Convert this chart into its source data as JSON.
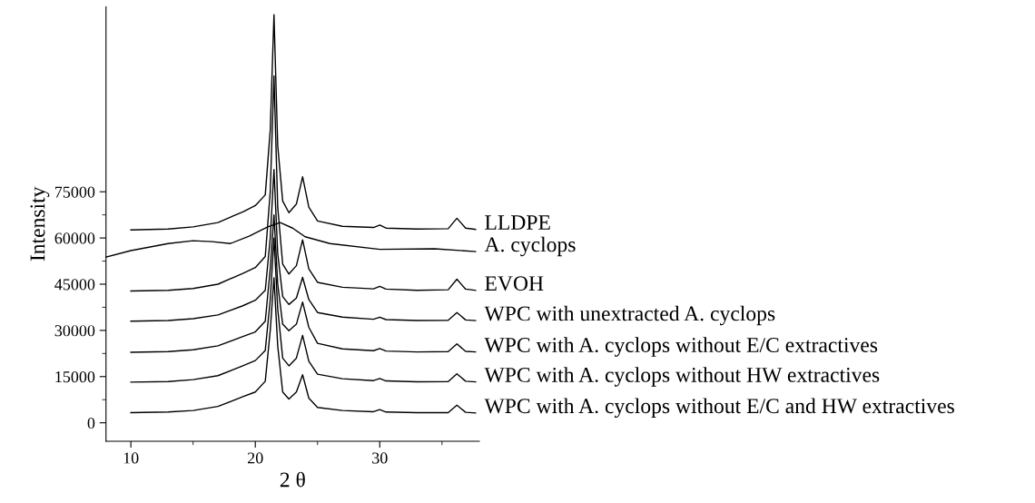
{
  "chart_data": {
    "type": "line",
    "xlabel": "2 θ",
    "ylabel": "Intensity",
    "xlim": [
      8,
      38
    ],
    "ylim": [
      -6000,
      135000
    ],
    "xticks": [
      10,
      {
        "value": 15,
        "label": null
      },
      20,
      {
        "value": 25,
        "label": null
      },
      30,
      {
        "value": 35,
        "label": null
      }
    ],
    "yticks": [
      0,
      {
        "value": 7500,
        "label": null
      },
      15000,
      {
        "value": 22500,
        "label": null
      },
      30000,
      {
        "value": 37500,
        "label": null
      },
      45000,
      {
        "value": 52500,
        "label": null
      },
      60000,
      {
        "value": 67500,
        "label": null
      },
      75000
    ],
    "grid": false,
    "legend": false,
    "marker": "none",
    "line_style": "solid",
    "x": [
      10,
      13,
      15,
      17,
      19,
      20,
      20.8,
      21.2,
      21.5,
      21.8,
      22.2,
      22.7,
      23.3,
      23.8,
      24.3,
      25,
      27,
      29.5,
      30,
      30.5,
      33,
      35.5,
      36.2,
      36.9,
      37.7
    ],
    "series": [
      {
        "name": "LLDPE",
        "color": "#000000",
        "values": [
          62600,
          62900,
          63600,
          65000,
          68500,
          70500,
          74000,
          95000,
          132500,
          90000,
          72000,
          68200,
          71000,
          79900,
          70000,
          65500,
          63800,
          63400,
          64200,
          63200,
          62900,
          63000,
          66400,
          63200,
          62800
        ]
      },
      {
        "name": "A. cyclops",
        "color": "#000000",
        "x": [
          8,
          10,
          13,
          15,
          16.5,
          18,
          19.5,
          21,
          22,
          23,
          24,
          26,
          30,
          34.4,
          37.7
        ],
        "values": [
          53800,
          55900,
          58200,
          59100,
          58800,
          58200,
          60600,
          63600,
          65000,
          63200,
          60400,
          58200,
          56300,
          56500,
          55600
        ]
      },
      {
        "name": "EVOH",
        "color": "#000000",
        "values": [
          42800,
          43000,
          43600,
          45000,
          48500,
          50400,
          54000,
          75000,
          112600,
          70000,
          51500,
          48300,
          51000,
          59400,
          50000,
          45600,
          44000,
          43500,
          44300,
          43400,
          43000,
          43200,
          46600,
          43400,
          43000
        ]
      },
      {
        "name": "WPC with unextracted A. cyclops",
        "color": "#000000",
        "values": [
          33000,
          33200,
          33800,
          35000,
          38000,
          39800,
          43000,
          60000,
          82200,
          55000,
          41000,
          38400,
          40500,
          47200,
          40000,
          35800,
          34300,
          33600,
          34300,
          33500,
          33200,
          33300,
          35800,
          33400,
          33200
        ]
      },
      {
        "name": "WPC with A. cyclops without E/C extractives",
        "color": "#000000",
        "values": [
          22900,
          23100,
          23700,
          25000,
          28000,
          29500,
          33000,
          50000,
          67500,
          45000,
          32000,
          29900,
          32000,
          39200,
          31000,
          25800,
          24000,
          23400,
          24100,
          23300,
          23000,
          23100,
          25600,
          23200,
          23000
        ]
      },
      {
        "name": "WPC with A. cyclops without HW extractives",
        "color": "#000000",
        "values": [
          13200,
          13400,
          14000,
          15300,
          18500,
          20200,
          23500,
          40000,
          60000,
          37000,
          21000,
          18500,
          21000,
          28400,
          20000,
          15800,
          14300,
          13700,
          14400,
          13600,
          13300,
          13400,
          15900,
          13500,
          13300
        ]
      },
      {
        "name": "WPC with A. cyclops without E/C and HW extractives",
        "color": "#000000",
        "values": [
          3300,
          3500,
          4000,
          5300,
          8500,
          10000,
          13500,
          30000,
          47100,
          25000,
          10000,
          7700,
          10000,
          15600,
          8000,
          5000,
          4000,
          3600,
          4300,
          3500,
          3300,
          3300,
          5700,
          3400,
          3200
        ]
      }
    ]
  }
}
